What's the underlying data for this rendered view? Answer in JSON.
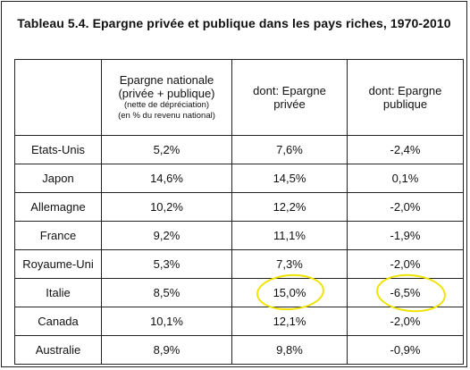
{
  "title": "Tableau 5.4. Epargne privée et publique dans les pays riches, 1970-2010",
  "headers": {
    "col1": {
      "line1": "Epargne nationale",
      "line2": "(privée + publique)",
      "line3": "(nette de dépréciation)",
      "line4": "(en % du revenu national)"
    },
    "col2": {
      "line1": "dont: Epargne",
      "line2": "privée"
    },
    "col3": {
      "line1": "dont: Epargne",
      "line2": "publique"
    }
  },
  "rows": [
    {
      "country": "Etats-Unis",
      "national": "5,2%",
      "private": "7,6%",
      "public": "-2,4%"
    },
    {
      "country": "Japon",
      "national": "14,6%",
      "private": "14,5%",
      "public": "0,1%"
    },
    {
      "country": "Allemagne",
      "national": "10,2%",
      "private": "12,2%",
      "public": "-2,0%"
    },
    {
      "country": "France",
      "national": "9,2%",
      "private": "11,1%",
      "public": "-1,9%"
    },
    {
      "country": "Royaume-Uni",
      "national": "5,3%",
      "private": "7,3%",
      "public": "-2,0%"
    },
    {
      "country": "Italie",
      "national": "8,5%",
      "private": "15,0%",
      "public": "-6,5%"
    },
    {
      "country": "Canada",
      "national": "10,1%",
      "private": "12,1%",
      "public": "-2,0%"
    },
    {
      "country": "Australie",
      "national": "8,9%",
      "private": "9,8%",
      "public": "-0,9%"
    }
  ],
  "highlight_color": "#f0e300"
}
